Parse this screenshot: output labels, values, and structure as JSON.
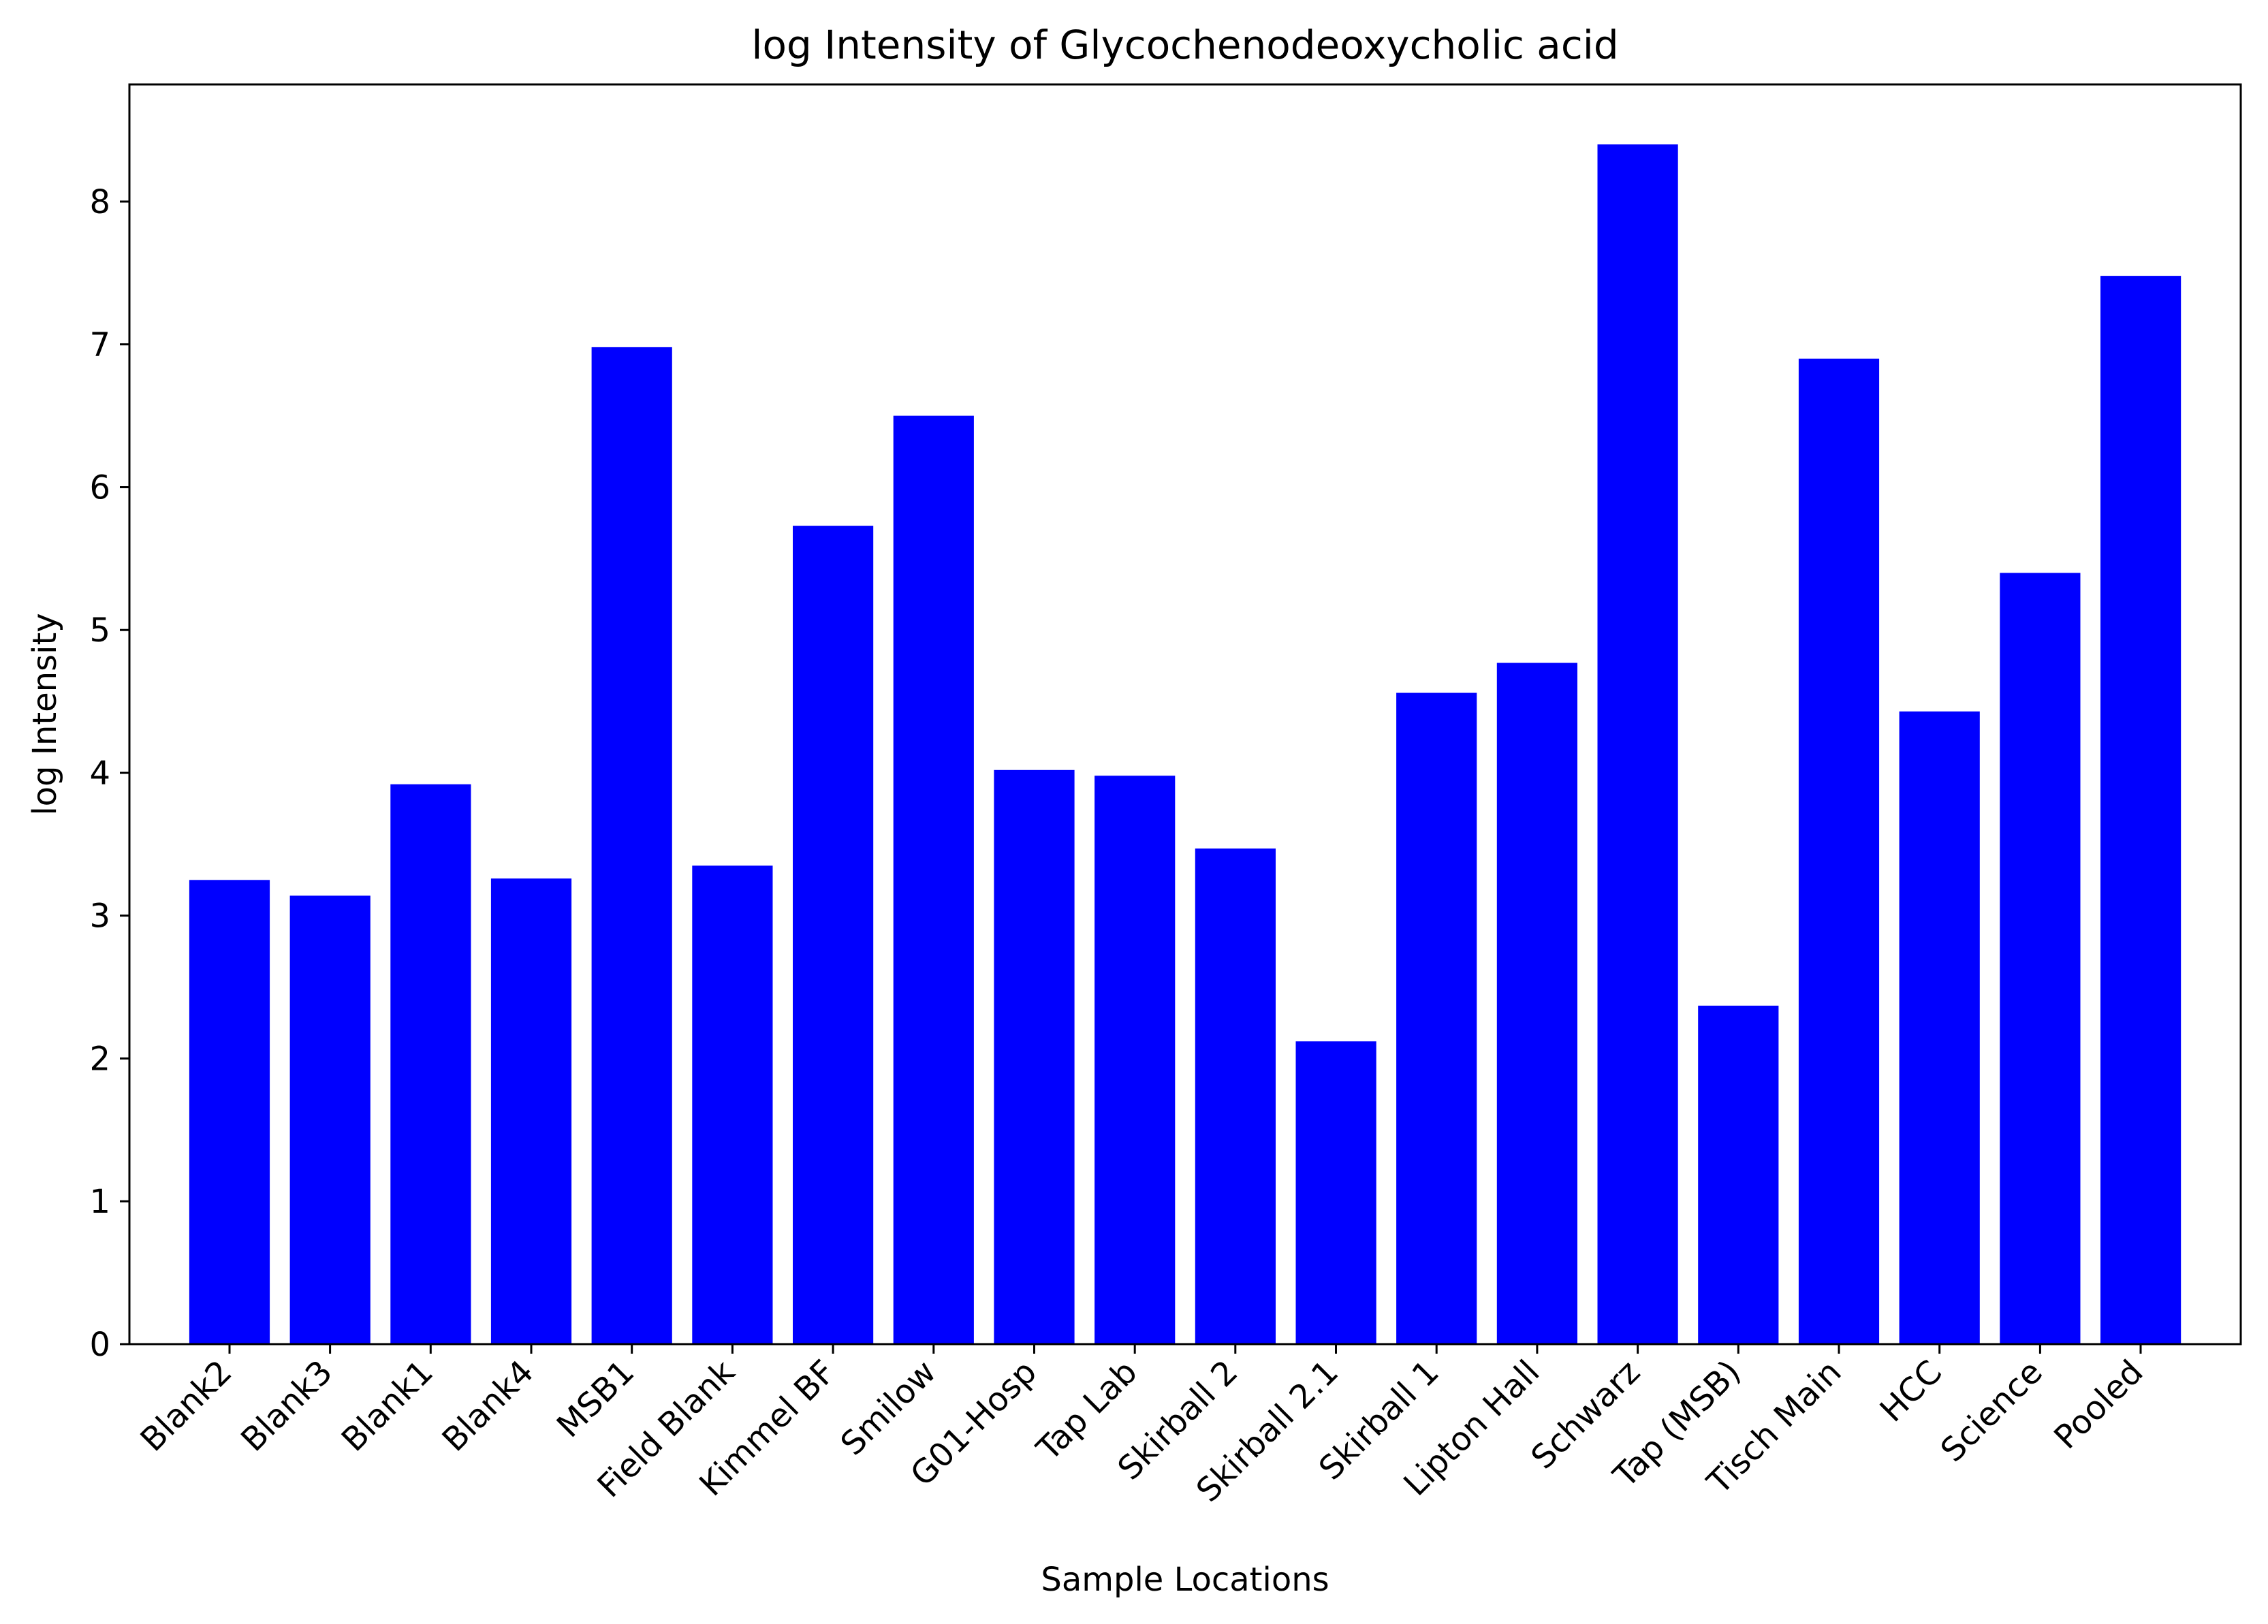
{
  "chart_data": {
    "type": "bar",
    "title": "log Intensity of Glycochenodeoxycholic acid",
    "xlabel": "Sample Locations",
    "ylabel": "log Intensity",
    "categories": [
      "Blank2",
      "Blank3",
      "Blank1",
      "Blank4",
      "MSB1",
      "Field Blank",
      "Kimmel BF",
      "Smilow",
      "G01-Hosp",
      "Tap Lab",
      "Skirball 2",
      "Skirball 2.1",
      "Skirball 1",
      "Lipton Hall",
      "Schwarz",
      "Tap (MSB)",
      "Tisch Main",
      "HCC",
      "Science",
      "Pooled"
    ],
    "values": [
      3.25,
      3.14,
      3.92,
      3.26,
      6.98,
      3.35,
      5.73,
      6.5,
      4.02,
      3.98,
      3.47,
      2.12,
      4.56,
      4.77,
      8.4,
      2.37,
      6.9,
      4.43,
      5.4,
      7.48
    ],
    "yticks": [
      0,
      1,
      2,
      3,
      4,
      5,
      6,
      7,
      8
    ],
    "ylim": [
      0,
      8.82
    ],
    "grid": false,
    "legend": "none",
    "bar_color": "#0000ff"
  }
}
